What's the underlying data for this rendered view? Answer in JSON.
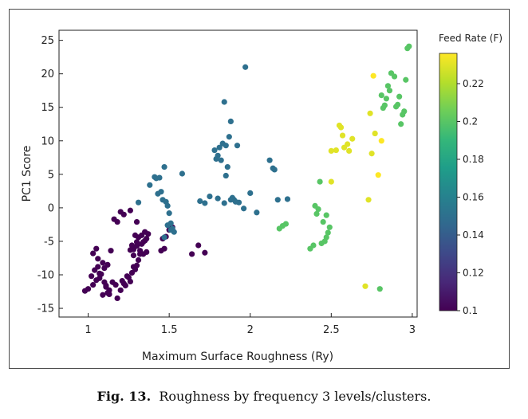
{
  "caption": {
    "label": "Fig. 13.",
    "text": "Roughness by frequency 3 levels/clusters."
  },
  "chart_data": {
    "type": "scatter",
    "title": "",
    "xlabel": "Maximum Surface Roughness (Ry)",
    "ylabel": "PC1 Score",
    "xlim": [
      0.82,
      3.03
    ],
    "ylim": [
      -16.3,
      26.5
    ],
    "xticks": [
      1,
      1.5,
      2,
      2.5,
      3
    ],
    "xtick_labels": [
      "1",
      "1.5",
      "2",
      "2.5",
      "3"
    ],
    "yticks": [
      -15,
      -10,
      -5,
      0,
      5,
      10,
      15,
      20,
      25
    ],
    "ytick_labels": [
      "-15",
      "-10",
      "-5",
      "0",
      "5",
      "10",
      "15",
      "20",
      "25"
    ],
    "grid": false,
    "colorbar": {
      "title": "Feed Rate (F)",
      "range": [
        0.1,
        0.236
      ],
      "ticks": [
        0.1,
        0.12,
        0.14,
        0.16,
        0.18,
        0.2,
        0.22
      ],
      "tick_labels": [
        "0.1",
        "0.12",
        "0.14",
        "0.16",
        "0.18",
        "0.2",
        "0.22"
      ],
      "colormap": "viridis",
      "colormap_stops": [
        "#440154",
        "#482878",
        "#3e4989",
        "#31688e",
        "#26828e",
        "#1f9e89",
        "#35b779",
        "#6ece58",
        "#b5de2b",
        "#fde725"
      ]
    },
    "series": [
      {
        "feed_rate": 0.1,
        "x": [
          0.98,
          1.0,
          1.03,
          1.05,
          1.02,
          1.07,
          1.04,
          1.06,
          1.08,
          1.05,
          1.03,
          1.06,
          1.09,
          1.1,
          1.07,
          1.1,
          1.11,
          1.13,
          1.12,
          1.09,
          1.11,
          1.13,
          1.14,
          1.12,
          1.15,
          1.17,
          1.18,
          1.2,
          1.22,
          1.21,
          1.23,
          1.24,
          1.26,
          1.25,
          1.27,
          1.28,
          1.29,
          1.3,
          1.31,
          1.32,
          1.28,
          1.3,
          1.33,
          1.34,
          1.35,
          1.36,
          1.31,
          1.33,
          1.37,
          1.35,
          1.32,
          1.34,
          1.29,
          1.27,
          1.3,
          1.36,
          1.28,
          1.26,
          1.3,
          1.45,
          1.47,
          1.48,
          1.46,
          1.5,
          1.52,
          1.68,
          1.72,
          1.64,
          1.26,
          1.2,
          1.22,
          1.16,
          1.18
        ],
        "y": [
          -12.4,
          -12.1,
          -11.5,
          -10.8,
          -10.2,
          -9.8,
          -9.3,
          -8.8,
          -9.9,
          -6.1,
          -6.8,
          -7.6,
          -8.2,
          -9.0,
          -10.5,
          -11.1,
          -11.8,
          -12.3,
          -12.7,
          -13.0,
          -11.6,
          -12.9,
          -6.4,
          -8.5,
          -11.1,
          -11.5,
          -13.5,
          -12.3,
          -11.3,
          -10.9,
          -11.6,
          -10.2,
          -11.0,
          -10.4,
          -9.7,
          -8.8,
          -9.2,
          -8.6,
          -7.8,
          -6.9,
          -6.2,
          -5.7,
          -5.4,
          -5.1,
          -4.9,
          -4.6,
          -4.4,
          -4.1,
          -3.9,
          -3.6,
          -6.4,
          -6.9,
          -4.1,
          -5.6,
          -5.1,
          -6.6,
          -7.1,
          -6.3,
          -2.1,
          -6.4,
          -6.1,
          -4.3,
          -4.6,
          -3.3,
          -2.9,
          -5.6,
          -6.7,
          -6.9,
          -0.4,
          -0.6,
          -1.0,
          -1.7,
          -2.1
        ]
      },
      {
        "feed_rate": 0.15,
        "x": [
          1.31,
          1.38,
          1.41,
          1.43,
          1.45,
          1.42,
          1.44,
          1.47,
          1.46,
          1.48,
          1.49,
          1.5,
          1.51,
          1.52,
          1.53,
          1.49,
          1.47,
          1.51,
          1.58,
          1.69,
          1.72,
          1.78,
          1.8,
          1.82,
          1.83,
          1.85,
          1.86,
          1.79,
          1.81,
          1.84,
          1.87,
          1.88,
          1.89,
          1.9,
          1.91,
          1.92,
          1.88,
          1.97,
          2.0,
          2.04,
          2.12,
          2.14,
          2.15,
          2.17,
          2.23,
          1.75,
          1.8,
          1.84,
          1.85,
          1.93,
          1.96
        ],
        "y": [
          0.8,
          3.4,
          4.6,
          2.1,
          2.4,
          4.4,
          4.5,
          6.1,
          1.2,
          0.9,
          0.3,
          -0.8,
          -2.3,
          -3.1,
          -3.6,
          -2.6,
          -4.4,
          -3.3,
          5.1,
          1.0,
          0.7,
          8.6,
          7.8,
          7.1,
          9.6,
          9.3,
          6.1,
          7.3,
          9.0,
          15.8,
          10.6,
          12.9,
          1.5,
          1.2,
          0.9,
          9.3,
          1.2,
          21.0,
          2.2,
          -0.7,
          7.1,
          5.9,
          5.7,
          1.2,
          1.3,
          1.7,
          1.4,
          0.7,
          4.8,
          0.8,
          -0.1
        ]
      },
      {
        "feed_rate": 0.2,
        "x": [
          2.18,
          2.2,
          2.22,
          2.37,
          2.39,
          2.4,
          2.42,
          2.41,
          2.43,
          2.44,
          2.46,
          2.47,
          2.48,
          2.45,
          2.49,
          2.47,
          2.8,
          2.82,
          2.84,
          2.85,
          2.87,
          2.86,
          2.89,
          2.9,
          2.91,
          2.92,
          2.93,
          2.94,
          2.95,
          2.96,
          2.97,
          2.98,
          2.81,
          2.83
        ],
        "y": [
          -3.1,
          -2.7,
          -2.4,
          -6.1,
          -5.6,
          0.3,
          -0.2,
          -0.9,
          3.9,
          -5.3,
          -5.0,
          -4.4,
          -3.7,
          -2.1,
          -2.9,
          -1.1,
          -12.1,
          14.9,
          16.3,
          18.2,
          20.1,
          17.5,
          19.6,
          15.1,
          15.4,
          16.6,
          12.5,
          13.9,
          14.4,
          19.1,
          23.8,
          24.1,
          16.8,
          15.3
        ],
        "x_extra": [],
        "y_extra": []
      },
      {
        "feed_rate": 0.23,
        "x": [
          2.5,
          2.53,
          2.55,
          2.56,
          2.57,
          2.58,
          2.6,
          2.61,
          2.63,
          2.71,
          2.73,
          2.74,
          2.75,
          2.77,
          2.5
        ],
        "y": [
          8.5,
          8.6,
          12.3,
          12.0,
          10.8,
          9.0,
          9.5,
          8.5,
          10.3,
          -11.7,
          1.2,
          14.1,
          8.1,
          11.1,
          3.9
        ]
      },
      {
        "feed_rate": 0.236,
        "x": [
          2.76,
          2.81,
          2.79
        ],
        "y": [
          19.7,
          10.0,
          4.9
        ]
      }
    ]
  }
}
